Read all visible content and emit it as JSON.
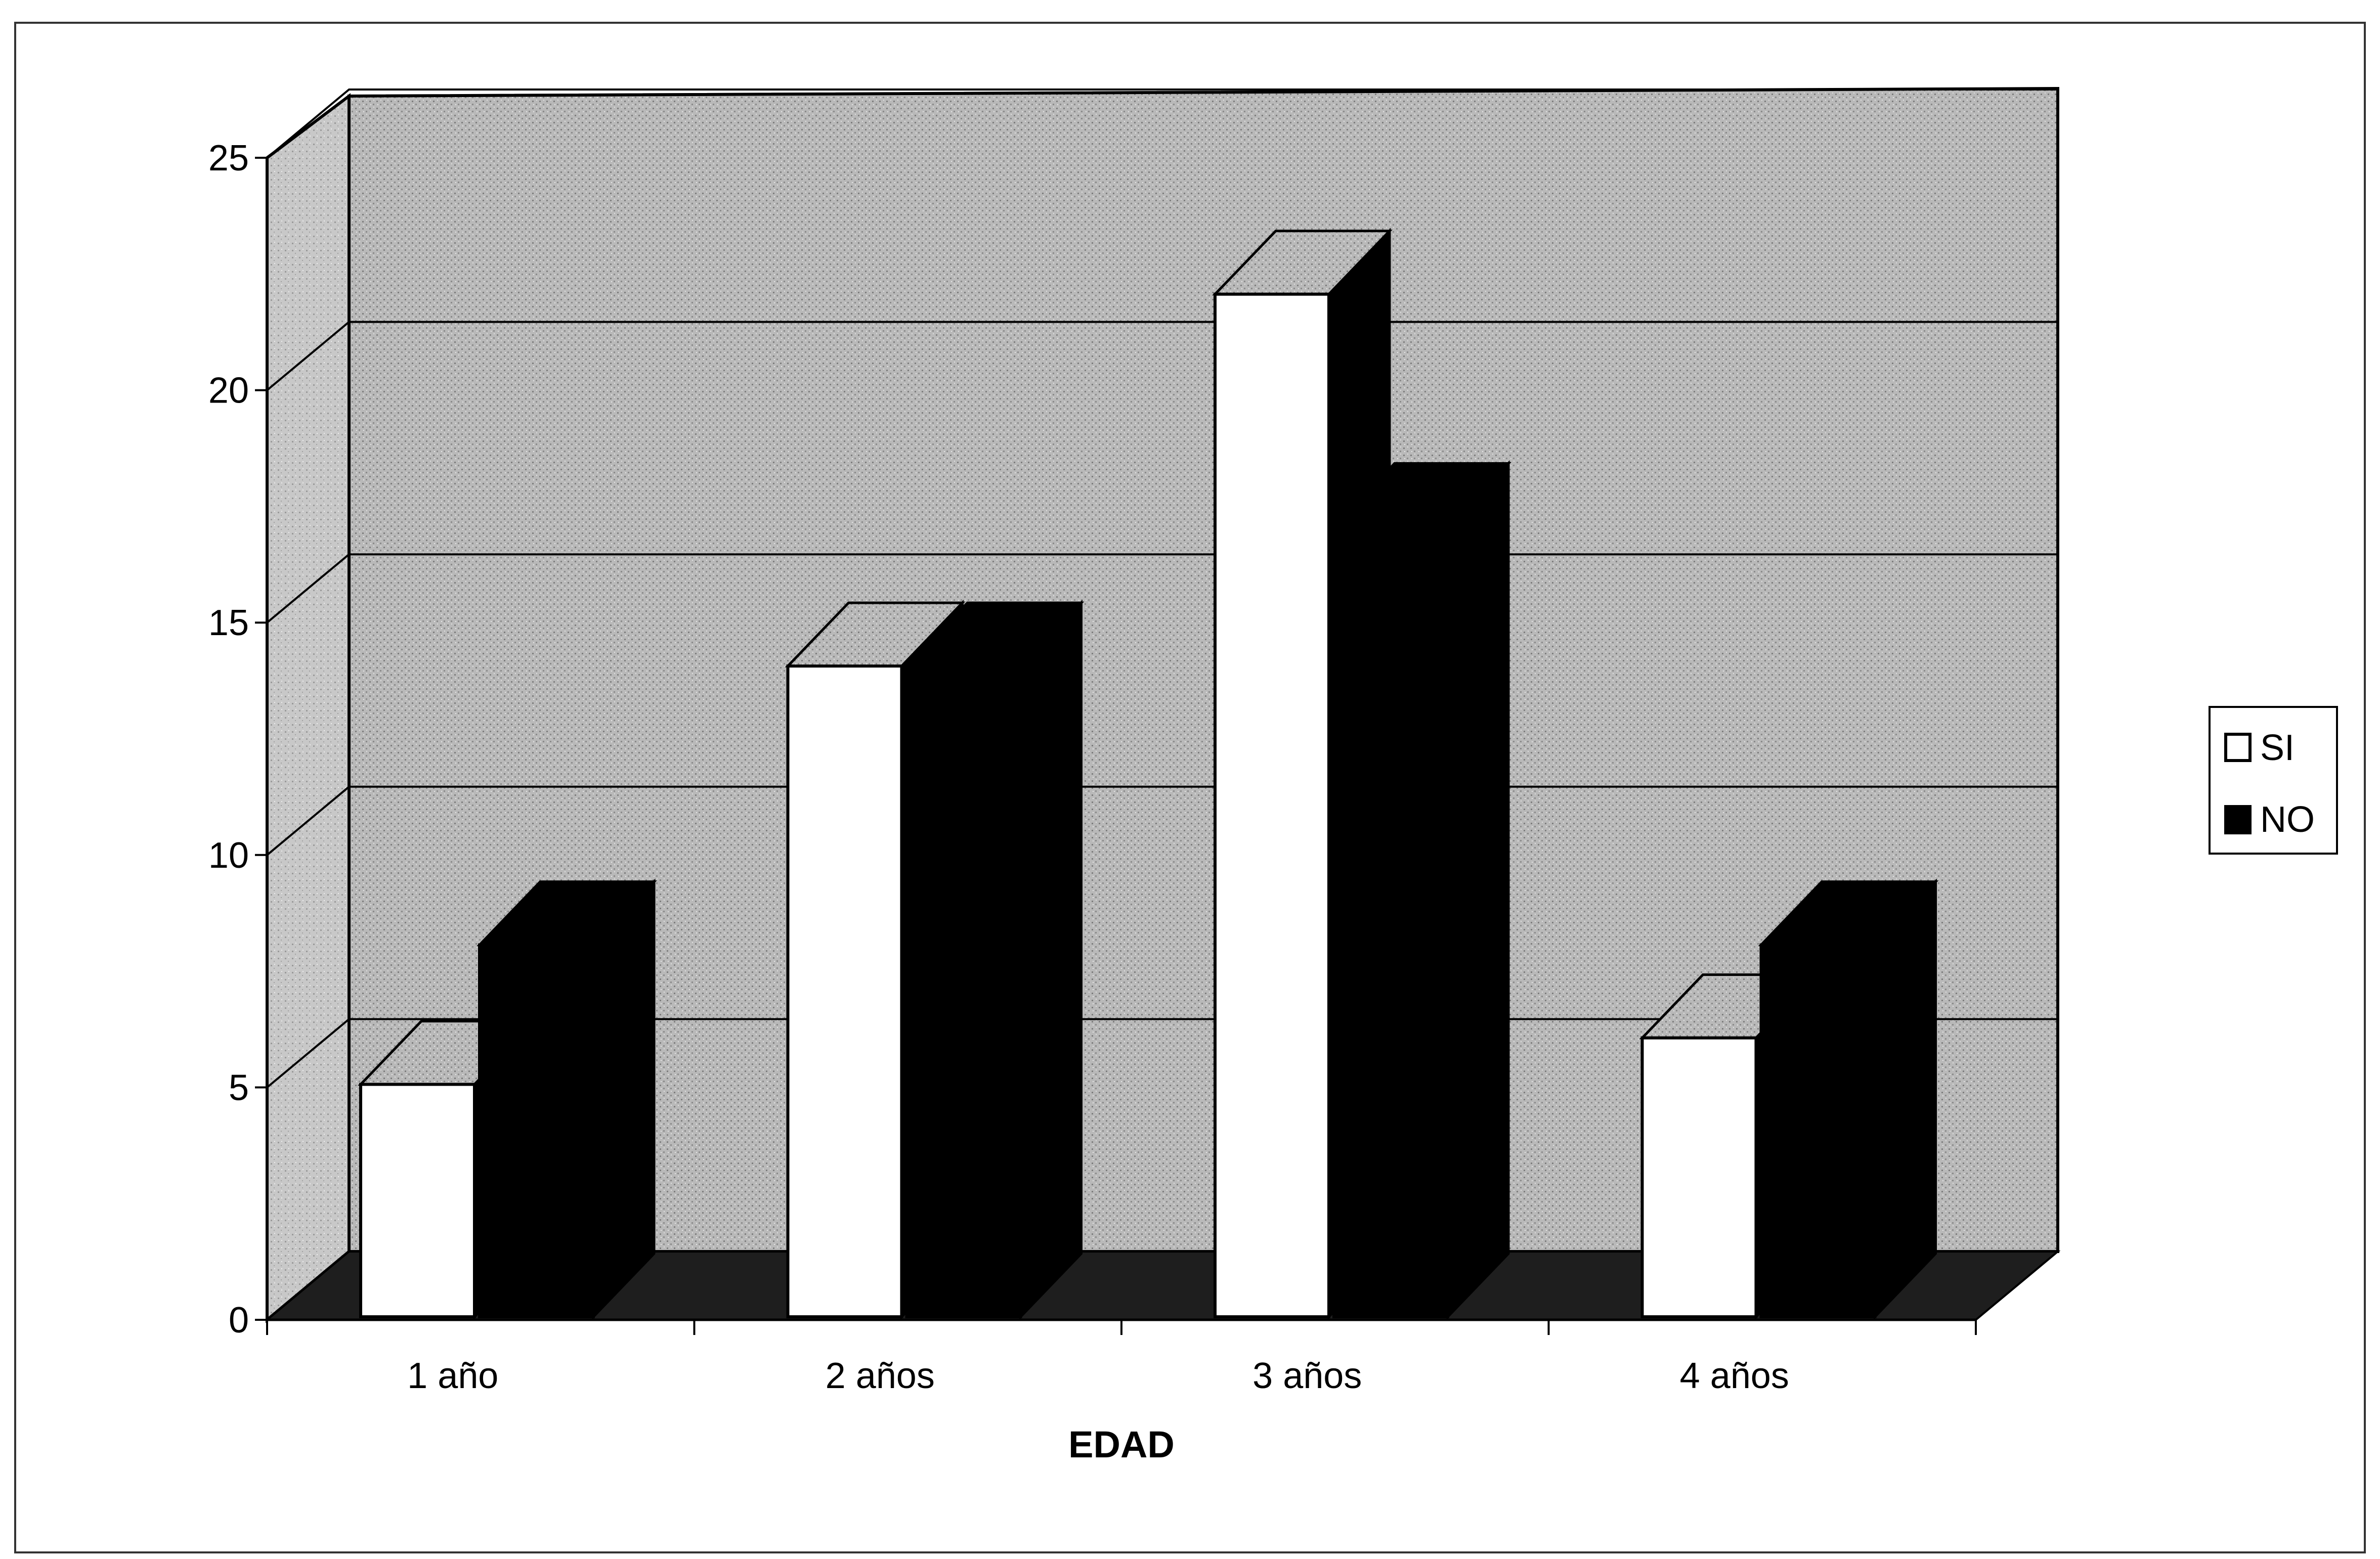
{
  "chart_data": {
    "type": "bar",
    "style": "3d-clustered-column",
    "categories": [
      "1 año",
      "2 años",
      "3 años",
      "4 años"
    ],
    "series": [
      {
        "name": "SI",
        "values": [
          5,
          14,
          22,
          6
        ],
        "color": "#ffffff"
      },
      {
        "name": "NO",
        "values": [
          8,
          14,
          17,
          8
        ],
        "color": "#000000"
      }
    ],
    "xlabel": "EDAD",
    "ylabel": "",
    "ylim": [
      0,
      25
    ],
    "yticks": [
      "0",
      "5",
      "10",
      "15",
      "20",
      "25"
    ],
    "grid": true,
    "legend_position": "right",
    "background_color": "#b4b4b4",
    "floor_color": "#1e1e1e"
  }
}
